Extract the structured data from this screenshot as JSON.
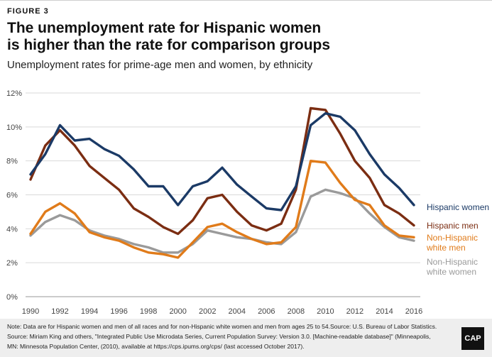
{
  "figure_label": "FIGURE 3",
  "title_line1": "The unemployment rate for Hispanic women",
  "title_line2": "is higher than the rate for comparison groups",
  "subtitle": "Unemployment rates for prime-age men and women, by ethnicity",
  "footer": {
    "note_line1": "Note: Data are for Hispanic women and men of all races and for non-Hispanic white women and men from ages 25 to 54.Source: U.S. Bureau of Labor Statistics.",
    "note_line2": "Source: Miriam King and others, \"Integrated Public Use Microdata Series, Current Population Survey: Version 3.0. [Machine-readable database]\" (Minneapolis,",
    "note_line3": "MN: Minnesota Population Center, (2010), available at https://cps.ipums.org/cps/ (last accessed October 2017).",
    "logo_text": "CAP"
  },
  "chart_data": {
    "type": "line",
    "title": "The unemployment rate for Hispanic women is higher than the rate for comparison groups",
    "subtitle": "Unemployment rates for prime-age men and women, by ethnicity",
    "xlabel": "",
    "ylabel": "",
    "xlim": [
      1990,
      2016
    ],
    "ylim": [
      0,
      12
    ],
    "x_ticks": [
      "1990",
      "1992",
      "1994",
      "1996",
      "1998",
      "2000",
      "2002",
      "2004",
      "2006",
      "2008",
      "2010",
      "2012",
      "2014",
      "2016"
    ],
    "y_ticks": [
      "0%",
      "2%",
      "4%",
      "6%",
      "8%",
      "10%",
      "12%"
    ],
    "grid": "horizontal",
    "legend": "right",
    "x": [
      1990,
      1991,
      1992,
      1993,
      1994,
      1995,
      1996,
      1997,
      1998,
      1999,
      2000,
      2001,
      2002,
      2003,
      2004,
      2005,
      2006,
      2007,
      2008,
      2009,
      2010,
      2011,
      2012,
      2013,
      2014,
      2015,
      2016
    ],
    "series": [
      {
        "name": "Non-Hispanic white women",
        "label_lines": [
          "Non-Hispanic",
          "white women"
        ],
        "color": "#9a9a9a",
        "values": [
          3.6,
          4.4,
          4.8,
          4.5,
          3.9,
          3.6,
          3.4,
          3.1,
          2.9,
          2.6,
          2.6,
          3.1,
          3.9,
          3.7,
          3.5,
          3.4,
          3.2,
          3.1,
          3.8,
          5.9,
          6.3,
          6.1,
          5.8,
          4.9,
          4.1,
          3.5,
          3.3
        ]
      },
      {
        "name": "Non-Hispanic white men",
        "label_lines": [
          "Non-Hispanic",
          "white men"
        ],
        "color": "#e07b1a",
        "values": [
          3.7,
          5.0,
          5.5,
          4.9,
          3.8,
          3.5,
          3.3,
          2.9,
          2.6,
          2.5,
          2.3,
          3.2,
          4.1,
          4.3,
          3.8,
          3.4,
          3.1,
          3.2,
          4.1,
          8.0,
          7.9,
          6.7,
          5.7,
          5.4,
          4.2,
          3.6,
          3.5
        ]
      },
      {
        "name": "Hispanic men",
        "label_lines": [
          "Hispanic men"
        ],
        "color": "#7b2d12",
        "values": [
          6.9,
          8.9,
          9.8,
          8.9,
          7.7,
          7.0,
          6.3,
          5.2,
          4.7,
          4.1,
          3.7,
          4.5,
          5.8,
          6.0,
          5.0,
          4.2,
          3.9,
          4.3,
          6.3,
          11.1,
          11.0,
          9.6,
          8.0,
          7.0,
          5.4,
          4.9,
          4.2
        ]
      },
      {
        "name": "Hispanic women",
        "label_lines": [
          "Hispanic women"
        ],
        "color": "#1b3a66",
        "values": [
          7.2,
          8.4,
          10.1,
          9.2,
          9.3,
          8.7,
          8.3,
          7.5,
          6.5,
          6.5,
          5.4,
          6.5,
          6.8,
          7.6,
          6.6,
          5.9,
          5.2,
          5.1,
          6.5,
          10.1,
          10.8,
          10.6,
          9.8,
          8.4,
          7.2,
          6.4,
          5.4
        ]
      }
    ]
  }
}
